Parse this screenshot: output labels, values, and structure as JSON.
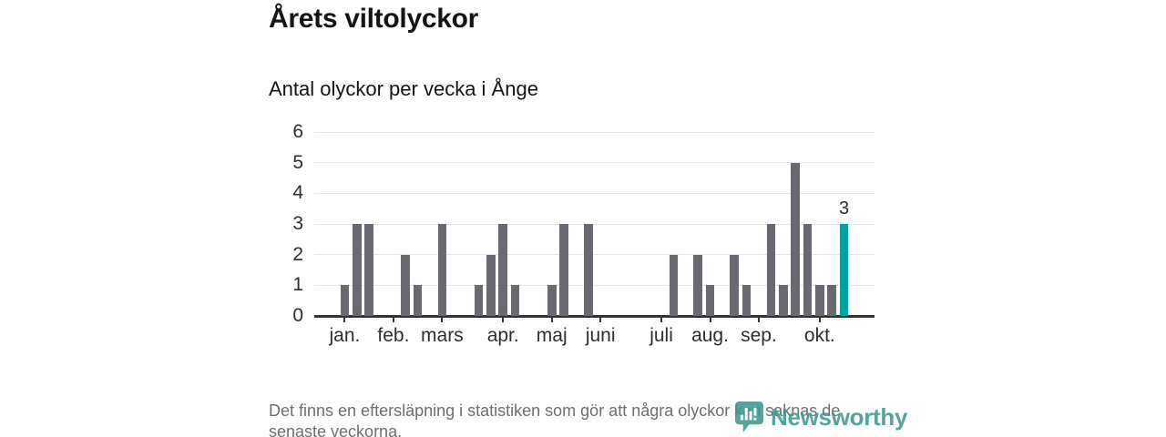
{
  "page": {
    "title": "Årets viltolyckor",
    "subtitle": "Antal olyckor per vecka i Ånge"
  },
  "footer": {
    "note": "Det finns en eftersläpning i statistiken som gör att några olyckor kan saknas de senaste veckorna.",
    "brand_name": "Newsworthy",
    "brand_icon": "newsworthy-barchart-bubble-icon"
  },
  "colors": {
    "bar": "#696971",
    "highlight": "#00a39b",
    "gridline": "#e8e6e4",
    "axis": "#333333",
    "label_text": "#2d2d2d",
    "title_text": "#141414",
    "footer_text": "#6e6e6e",
    "brand_teal": "#3d988f"
  },
  "chart_data": {
    "type": "bar",
    "title": "Årets viltolyckor",
    "subtitle": "Antal olyckor per vecka i Ånge",
    "x_unit": "week",
    "x_range_note": "weekly bars, January through October",
    "weeks_total": 46,
    "values_by_week": [
      0,
      0,
      1,
      3,
      3,
      0,
      0,
      2,
      1,
      0,
      3,
      0,
      0,
      1,
      2,
      3,
      1,
      0,
      0,
      1,
      3,
      0,
      3,
      0,
      0,
      0,
      0,
      0,
      0,
      2,
      0,
      2,
      1,
      0,
      2,
      1,
      0,
      3,
      1,
      5,
      3,
      1,
      1,
      3,
      0,
      0
    ],
    "highlight_week_index": 43,
    "highlight_value_label": "3",
    "ylim": [
      0,
      6
    ],
    "yticks": [
      0,
      1,
      2,
      3,
      4,
      5,
      6
    ],
    "grid": true,
    "legend": "none",
    "month_ticks": [
      {
        "label": "jan.",
        "week_index": 2
      },
      {
        "label": "feb.",
        "week_index": 6
      },
      {
        "label": "mars",
        "week_index": 10
      },
      {
        "label": "apr.",
        "week_index": 15
      },
      {
        "label": "maj",
        "week_index": 19
      },
      {
        "label": "juni",
        "week_index": 23
      },
      {
        "label": "juli",
        "week_index": 28
      },
      {
        "label": "aug.",
        "week_index": 32
      },
      {
        "label": "sep.",
        "week_index": 36
      },
      {
        "label": "okt.",
        "week_index": 41
      }
    ]
  }
}
